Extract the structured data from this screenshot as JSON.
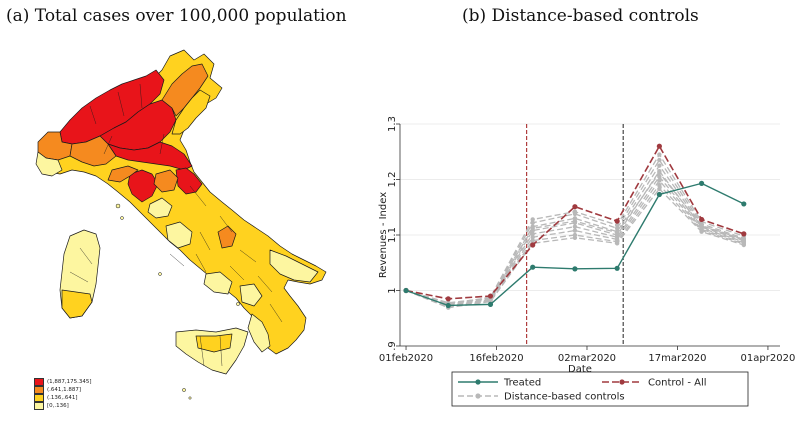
{
  "panel_a": {
    "caption": "(a) Total cases over 100,000 population",
    "legend": [
      {
        "label": "(1,887,175.345]",
        "color": "#e8141a"
      },
      {
        "label": "(.641,1.887]",
        "color": "#f58a1f"
      },
      {
        "label": "(.136,.641]",
        "color": "#ffd21f"
      },
      {
        "label": "[0,.136]",
        "color": "#fdf6a0"
      }
    ],
    "colors": {
      "high": "#e8141a",
      "mid_high": "#f58a1f",
      "mid_low": "#ffd21f",
      "low": "#fdf6a0",
      "border": "#1a1a1a"
    }
  },
  "panel_b": {
    "caption": "(b) Distance-based controls"
  },
  "chart_data": {
    "type": "line",
    "title": "",
    "xlabel": "Date",
    "ylabel": "Revenues - Index",
    "ylim": [
      0.9,
      1.3
    ],
    "yticks": [
      0.9,
      1.0,
      1.1,
      1.2,
      1.3
    ],
    "ytick_labels": [
      ".9",
      "1",
      "1.1",
      "1.2",
      "1.3"
    ],
    "xlim": [
      "2020-01-31",
      "2020-04-03"
    ],
    "xticks": [
      "2020-02-01",
      "2020-02-16",
      "2020-03-02",
      "2020-03-17",
      "2020-04-01"
    ],
    "xtick_labels": [
      "01feb2020",
      "16feb2020",
      "02mar2020",
      "17mar2020",
      "01apr2020"
    ],
    "x": [
      "2020-02-01",
      "2020-02-08",
      "2020-02-15",
      "2020-02-22",
      "2020-02-29",
      "2020-03-07",
      "2020-03-14",
      "2020-03-21",
      "2020-03-28"
    ],
    "vlines": [
      {
        "x": "2020-02-21",
        "color": "#a01818",
        "style": "dashed"
      },
      {
        "x": "2020-03-08",
        "color": "#222222",
        "style": "dashed"
      }
    ],
    "series": [
      {
        "name": "Treated",
        "color": "#2e7b6e",
        "style": "solid",
        "values": [
          1.0,
          0.973,
          0.975,
          1.042,
          1.039,
          1.04,
          1.173,
          1.193,
          1.156
        ]
      },
      {
        "name": "Control - All",
        "color": "#a03a3f",
        "style": "dashed",
        "values": [
          1.0,
          0.985,
          0.99,
          1.082,
          1.151,
          1.125,
          1.26,
          1.128,
          1.102
        ]
      },
      {
        "name": "Distance-based controls",
        "color": "#b8b8b8",
        "style": "dashed",
        "lines": [
          [
            1.0,
            0.975,
            0.988,
            1.128,
            1.142,
            1.118,
            1.245,
            1.124,
            1.098
          ],
          [
            1.0,
            0.978,
            0.986,
            1.122,
            1.138,
            1.112,
            1.235,
            1.12,
            1.094
          ],
          [
            1.0,
            0.972,
            0.984,
            1.115,
            1.13,
            1.106,
            1.225,
            1.117,
            1.092
          ],
          [
            1.0,
            0.97,
            0.982,
            1.108,
            1.122,
            1.1,
            1.215,
            1.114,
            1.09
          ],
          [
            1.0,
            0.976,
            0.985,
            1.102,
            1.115,
            1.096,
            1.205,
            1.112,
            1.088
          ],
          [
            1.0,
            0.974,
            0.983,
            1.096,
            1.108,
            1.092,
            1.198,
            1.11,
            1.086
          ],
          [
            1.0,
            0.971,
            0.981,
            1.09,
            1.1,
            1.088,
            1.19,
            1.108,
            1.084
          ],
          [
            1.0,
            0.969,
            0.98,
            1.085,
            1.095,
            1.085,
            1.183,
            1.106,
            1.082
          ],
          [
            1.0,
            0.977,
            0.987,
            1.112,
            1.125,
            1.104,
            1.212,
            1.116,
            1.092
          ]
        ]
      }
    ],
    "legend": {
      "position": "bottom",
      "entries": [
        "Treated",
        "Control - All",
        "Distance-based controls"
      ]
    }
  }
}
